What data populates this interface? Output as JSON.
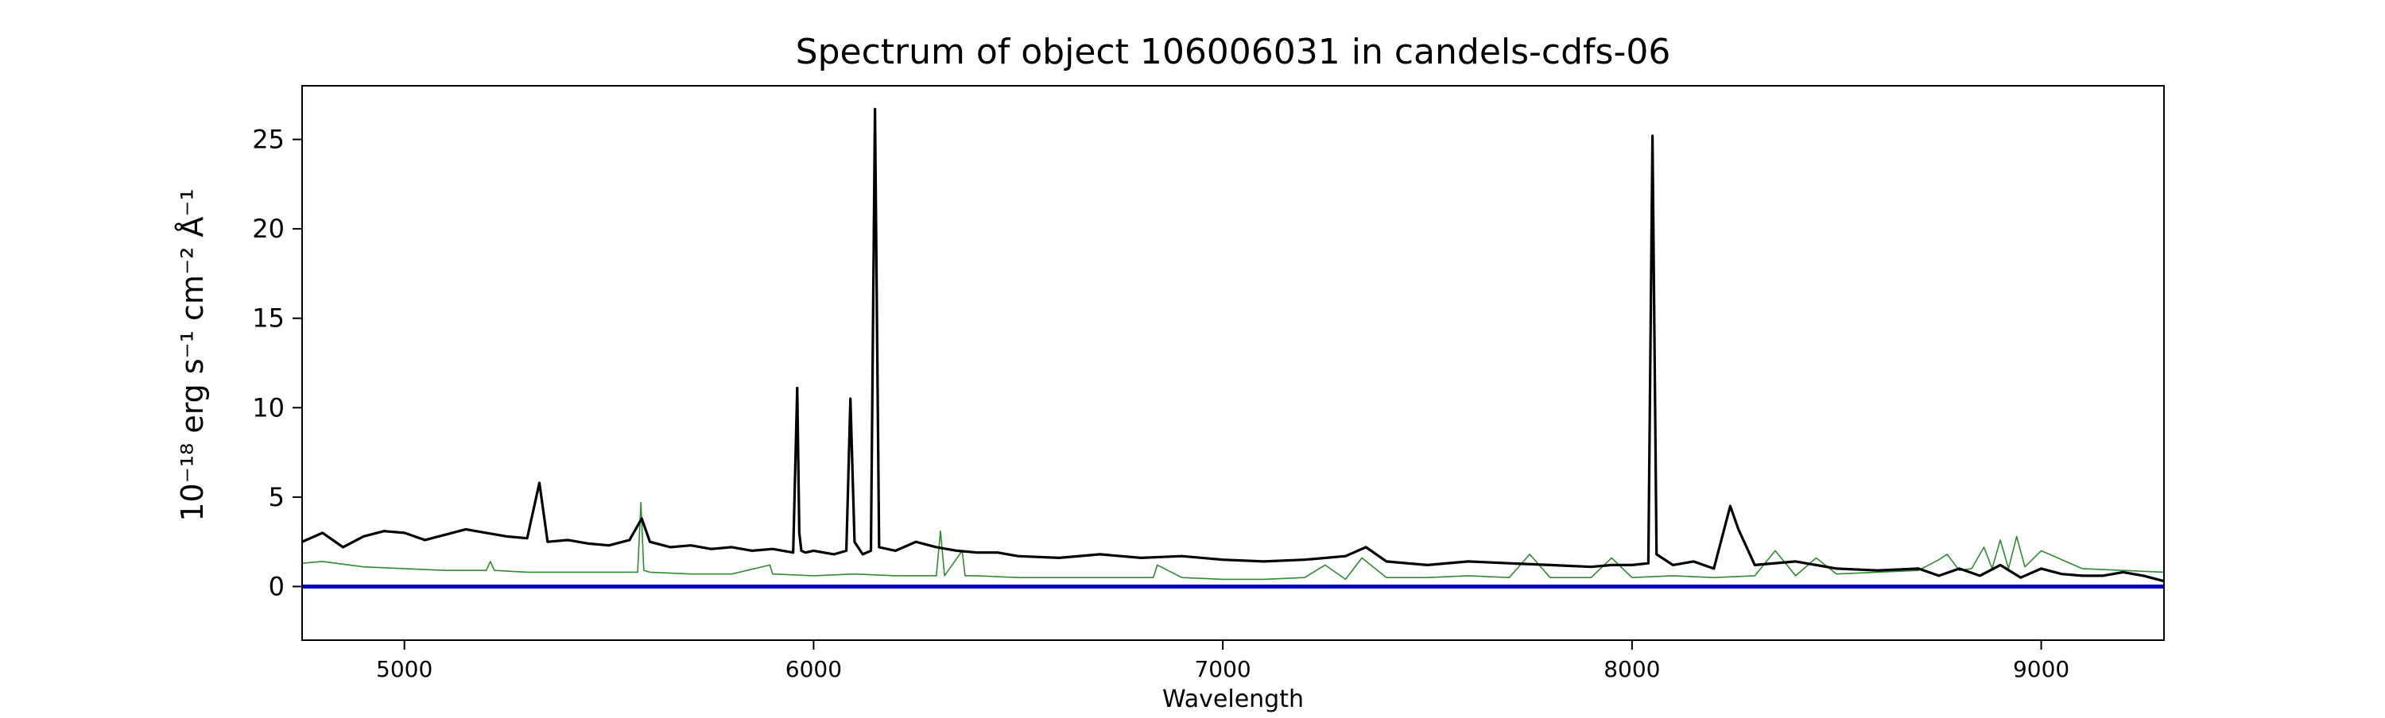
{
  "chart_data": {
    "type": "line",
    "title": "Spectrum of object 106006031 in candels-cdfs-06",
    "xlabel": "Wavelength",
    "ylabel": "10⁻¹⁸ erg s⁻¹ cm⁻² Å⁻¹",
    "xlim": [
      4750,
      9300
    ],
    "ylim": [
      -3,
      28
    ],
    "xticks": [
      5000,
      6000,
      7000,
      8000,
      9000
    ],
    "yticks": [
      0,
      5,
      10,
      15,
      20,
      25
    ],
    "grid": false,
    "legend": "none",
    "colors": {
      "flux": "#000000",
      "sky": "#2e8b2e",
      "zero": "#0000cc"
    },
    "series": [
      {
        "x": [
          4750,
          4800,
          4850,
          4900,
          4950,
          5000,
          5050,
          5100,
          5150,
          5200,
          5250,
          5300,
          5330,
          5350,
          5400,
          5450,
          5500,
          5550,
          5580,
          5600,
          5650,
          5700,
          5750,
          5800,
          5850,
          5900,
          5950,
          5960,
          5965,
          5970,
          5980,
          6000,
          6050,
          6080,
          6090,
          6100,
          6120,
          6140,
          6150,
          6160,
          6200,
          6250,
          6300,
          6350,
          6400,
          6450,
          6500,
          6600,
          6700,
          6800,
          6900,
          7000,
          7100,
          7200,
          7300,
          7350,
          7400,
          7500,
          7600,
          7700,
          7800,
          7900,
          7950,
          8000,
          8040,
          8050,
          8060,
          8100,
          8150,
          8200,
          8240,
          8260,
          8300,
          8400,
          8500,
          8600,
          8700,
          8750,
          8800,
          8850,
          8900,
          8950,
          9000,
          9050,
          9100,
          9150,
          9200,
          9250,
          9300
        ],
        "y": [
          2.5,
          3.0,
          2.2,
          2.8,
          3.1,
          3.0,
          2.6,
          2.9,
          3.2,
          3.0,
          2.8,
          2.7,
          5.8,
          2.5,
          2.6,
          2.4,
          2.3,
          2.6,
          3.8,
          2.5,
          2.2,
          2.3,
          2.1,
          2.2,
          2.0,
          2.1,
          1.9,
          11.1,
          3.0,
          2.0,
          1.9,
          2.0,
          1.8,
          2.0,
          10.5,
          2.5,
          1.8,
          2.0,
          26.7,
          2.2,
          2.0,
          2.5,
          2.2,
          2.0,
          1.9,
          1.9,
          1.7,
          1.6,
          1.8,
          1.6,
          1.7,
          1.5,
          1.4,
          1.5,
          1.7,
          2.2,
          1.4,
          1.2,
          1.4,
          1.3,
          1.2,
          1.1,
          1.2,
          1.2,
          1.3,
          25.2,
          1.8,
          1.2,
          1.4,
          1.0,
          4.5,
          3.2,
          1.2,
          1.4,
          1.0,
          0.9,
          1.0,
          0.6,
          1.0,
          0.6,
          1.2,
          0.5,
          1.0,
          0.7,
          0.6,
          0.6,
          0.8,
          0.6,
          0.3
        ]
      },
      {
        "x": [
          4750,
          4800,
          4900,
          5000,
          5100,
          5200,
          5210,
          5220,
          5300,
          5400,
          5500,
          5570,
          5578,
          5585,
          5600,
          5700,
          5800,
          5893,
          5900,
          6000,
          6100,
          6200,
          6300,
          6310,
          6320,
          6363,
          6370,
          6400,
          6500,
          6600,
          6700,
          6830,
          6840,
          6900,
          7000,
          7100,
          7200,
          7250,
          7300,
          7340,
          7400,
          7500,
          7600,
          7700,
          7750,
          7800,
          7900,
          7950,
          8000,
          8100,
          8200,
          8300,
          8350,
          8400,
          8450,
          8500,
          8600,
          8700,
          8750,
          8770,
          8800,
          8830,
          8860,
          8880,
          8900,
          8920,
          8940,
          8960,
          9000,
          9100,
          9200,
          9300
        ],
        "y": [
          1.3,
          1.4,
          1.1,
          1.0,
          0.9,
          0.9,
          1.4,
          0.9,
          0.8,
          0.8,
          0.8,
          0.8,
          4.7,
          0.9,
          0.8,
          0.7,
          0.7,
          1.2,
          0.7,
          0.6,
          0.7,
          0.6,
          0.6,
          3.1,
          0.6,
          2.0,
          0.6,
          0.6,
          0.5,
          0.5,
          0.5,
          0.5,
          1.2,
          0.5,
          0.4,
          0.4,
          0.5,
          1.2,
          0.4,
          1.6,
          0.5,
          0.5,
          0.6,
          0.5,
          1.8,
          0.5,
          0.5,
          1.6,
          0.5,
          0.6,
          0.5,
          0.6,
          2.0,
          0.6,
          1.6,
          0.7,
          0.8,
          0.9,
          1.5,
          1.8,
          0.9,
          1.0,
          2.2,
          1.0,
          2.6,
          1.0,
          2.8,
          1.1,
          2.0,
          1.0,
          0.9,
          0.8
        ]
      },
      {
        "x": [
          4750,
          9300
        ],
        "y": [
          0,
          0
        ]
      }
    ]
  }
}
